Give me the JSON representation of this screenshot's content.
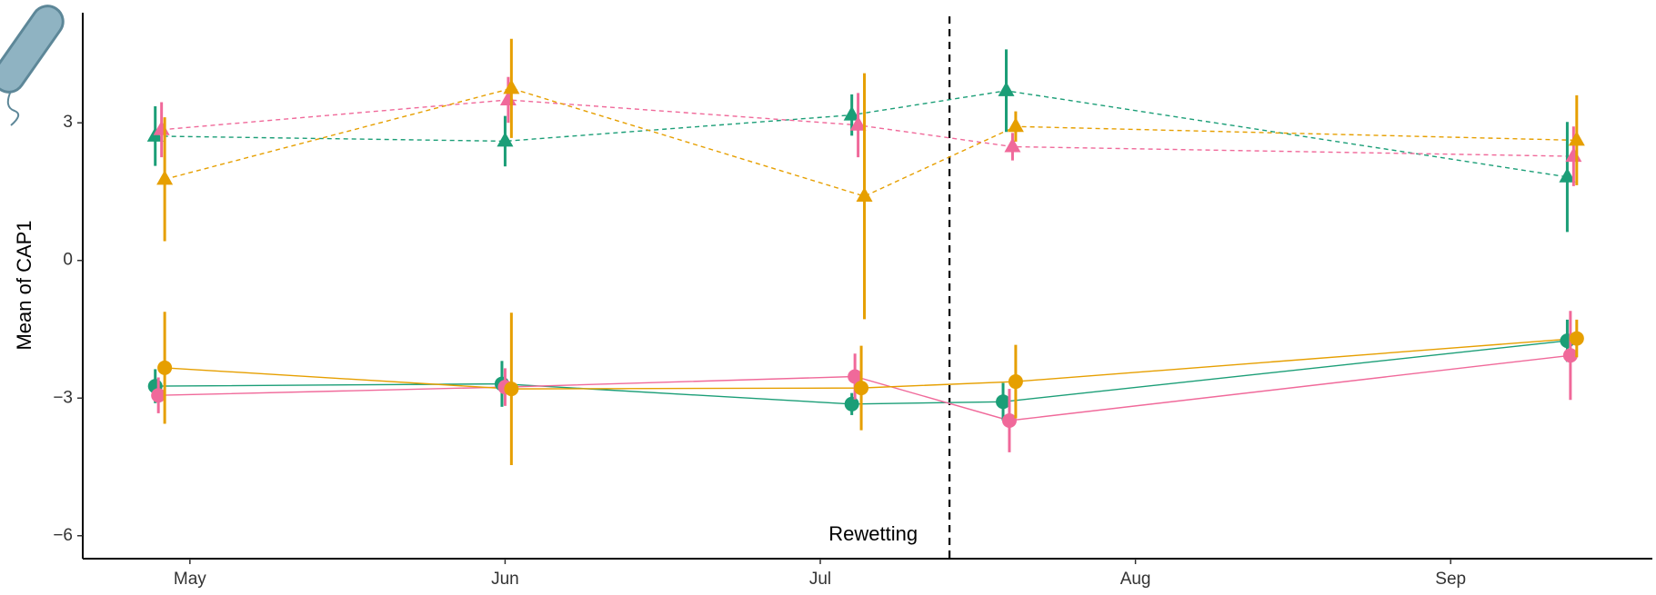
{
  "chart_data": {
    "type": "line",
    "y_label": "Mean of CAP1",
    "xlim": [
      4.66,
      9.64
    ],
    "xticks": [
      {
        "value": 5,
        "label": "May"
      },
      {
        "value": 6,
        "label": "Jun"
      },
      {
        "value": 7,
        "label": "Jul"
      },
      {
        "value": 8,
        "label": "Aug"
      },
      {
        "value": 9,
        "label": "Sep"
      }
    ],
    "ylim": [
      -6.5,
      5.4
    ],
    "yticks": [
      {
        "value": -6,
        "label": "−6"
      },
      {
        "value": -3,
        "label": "−3"
      },
      0,
      3
    ],
    "vline": {
      "value": 7.41,
      "label": "Rewetting"
    },
    "series": [
      {
        "color": "#1b9e77",
        "marker": "triangle",
        "linestyle": "dashed",
        "x": [
          4.89,
          6.0,
          7.1,
          7.59,
          9.37
        ],
        "values": [
          2.71,
          2.6,
          3.17,
          3.7,
          1.82
        ],
        "errors": [
          0.65,
          0.55,
          0.45,
          0.9,
          1.2
        ]
      },
      {
        "color": "#f0699a",
        "marker": "triangle",
        "linestyle": "dashed",
        "x": [
          4.91,
          6.01,
          7.12,
          7.61,
          9.39
        ],
        "values": [
          2.85,
          3.5,
          2.95,
          2.48,
          2.27
        ],
        "errors": [
          0.6,
          0.5,
          0.7,
          0.3,
          0.65
        ]
      },
      {
        "color": "#e69f00",
        "marker": "triangle",
        "linestyle": "dashed",
        "x": [
          4.92,
          6.02,
          7.14,
          7.62,
          9.4
        ],
        "values": [
          1.77,
          3.75,
          1.4,
          2.92,
          2.62
        ],
        "errors": [
          1.35,
          1.08,
          2.68,
          0.33,
          0.98
        ]
      },
      {
        "color": "#1b9e77",
        "marker": "circle",
        "linestyle": "solid",
        "x": [
          4.89,
          5.99,
          7.1,
          7.58,
          9.37
        ],
        "values": [
          -2.74,
          -2.69,
          -3.13,
          -3.08,
          -1.75
        ],
        "errors": [
          0.37,
          0.5,
          0.24,
          0.41,
          0.46
        ]
      },
      {
        "color": "#f0699a",
        "marker": "circle",
        "linestyle": "solid",
        "x": [
          4.9,
          6.0,
          7.11,
          7.6,
          9.38
        ],
        "values": [
          -2.94,
          -2.76,
          -2.53,
          -3.49,
          -2.07
        ],
        "errors": [
          0.39,
          0.41,
          0.5,
          0.69,
          0.97
        ]
      },
      {
        "color": "#e69f00",
        "marker": "circle",
        "linestyle": "solid",
        "x": [
          4.92,
          6.02,
          7.13,
          7.62,
          9.4
        ],
        "values": [
          -2.34,
          -2.8,
          -2.78,
          -2.64,
          -1.7
        ],
        "errors": [
          1.22,
          1.66,
          0.92,
          0.8,
          0.41
        ]
      }
    ]
  }
}
